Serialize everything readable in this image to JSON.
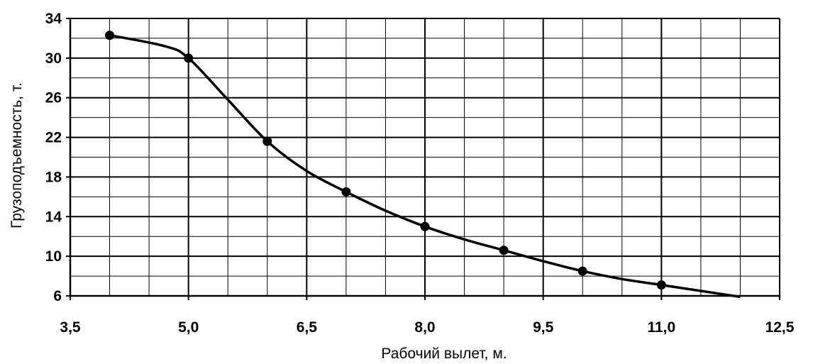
{
  "chart_data": {
    "type": "line",
    "title": "",
    "xlabel": "Рабочий вылет, м.",
    "ylabel": "Грузоподъемность, т.",
    "xlim": [
      3.5,
      12.5
    ],
    "ylim": [
      6,
      34
    ],
    "x_ticks": [
      "3,5",
      "5,0",
      "6,5",
      "8,0",
      "9,5",
      "11,0",
      "12,5"
    ],
    "x_tick_values": [
      3.5,
      5.0,
      6.5,
      8.0,
      9.5,
      11.0,
      12.5
    ],
    "y_ticks": [
      "6",
      "10",
      "14",
      "18",
      "22",
      "26",
      "30",
      "34"
    ],
    "y_tick_values": [
      6,
      10,
      14,
      18,
      22,
      26,
      30,
      34
    ],
    "x_minor_step": 0.5,
    "y_minor_step": 2,
    "grid": true,
    "legend": "none",
    "series": [
      {
        "x": [
          4,
          5,
          6,
          7,
          8,
          9,
          10,
          11
        ],
        "y": [
          32.3,
          30.0,
          21.6,
          16.5,
          13.0,
          10.6,
          8.5,
          7.1
        ],
        "markers": true,
        "color": "#000000"
      }
    ],
    "curve": {
      "x": [
        4,
        4.7,
        5,
        5.5,
        6,
        6.5,
        7,
        7.5,
        8,
        8.5,
        9,
        9.5,
        10,
        10.5,
        11,
        11.5,
        12
      ],
      "y": [
        32.3,
        31.2,
        30.0,
        25.8,
        21.6,
        18.6,
        16.5,
        14.6,
        13.0,
        11.7,
        10.6,
        9.5,
        8.5,
        7.7,
        7.1,
        6.5,
        5.9
      ]
    }
  }
}
